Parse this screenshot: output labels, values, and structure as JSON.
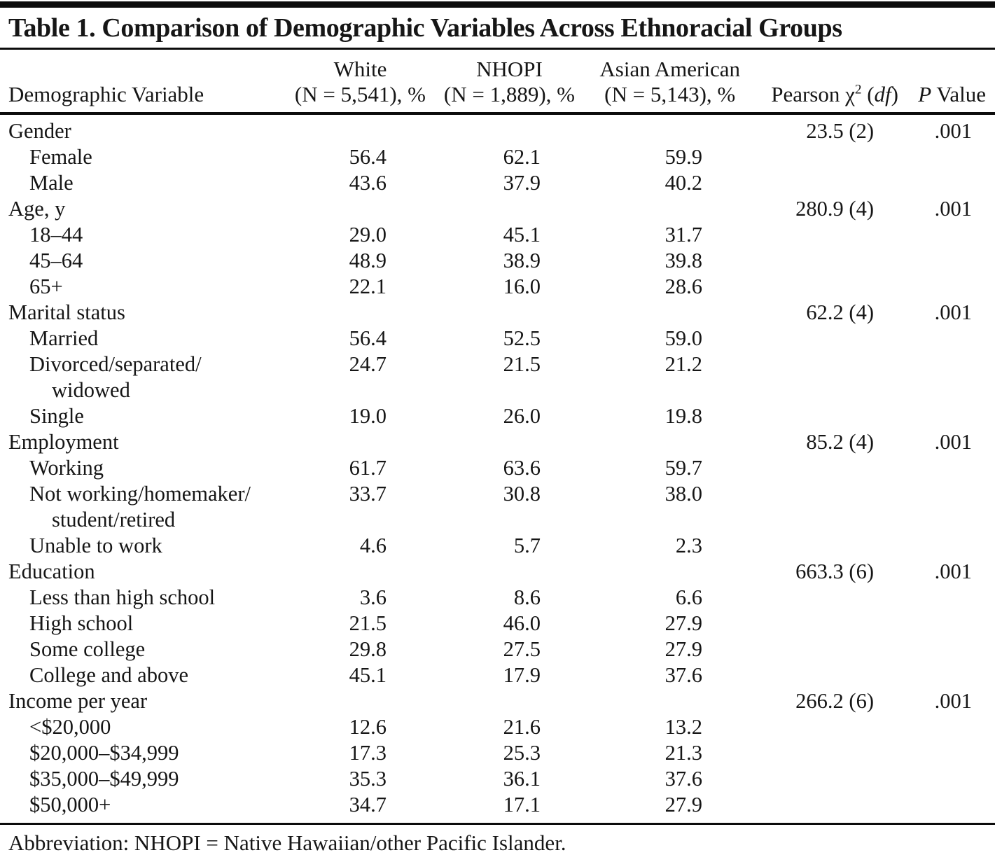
{
  "title": "Table 1. Comparison of Demographic Variables Across Ethnoracial Groups",
  "columns": {
    "variable": "Demographic Variable",
    "white": {
      "line1": "White",
      "line2": "(N = 5,541), %"
    },
    "nhopi": {
      "line1": "NHOPI",
      "line2": "(N = 1,889), %"
    },
    "asian": {
      "line1": "Asian American",
      "line2": "(N = 5,143), %"
    },
    "pearson": {
      "pre": "Pearson χ",
      "sup": "2",
      "mid": " (",
      "df": "df",
      "post": ")"
    },
    "pvalue": {
      "italic": "P",
      "rest": " Value"
    }
  },
  "rows": [
    {
      "label": "Gender",
      "type": "section",
      "chi": "23.5 (2)",
      "p": ".001"
    },
    {
      "label": "Female",
      "type": "sub",
      "white": "56.4",
      "nhopi": "62.1",
      "asian": "59.9"
    },
    {
      "label": "Male",
      "type": "sub",
      "white": "43.6",
      "nhopi": "37.9",
      "asian": "40.2"
    },
    {
      "label": "Age, y",
      "type": "section",
      "chi": "280.9 (4)",
      "p": ".001"
    },
    {
      "label": "18–44",
      "type": "sub",
      "white": "29.0",
      "nhopi": "45.1",
      "asian": "31.7"
    },
    {
      "label": "45–64",
      "type": "sub",
      "white": "48.9",
      "nhopi": "38.9",
      "asian": "39.8"
    },
    {
      "label": "65+",
      "type": "sub",
      "white": "22.1",
      "nhopi": "16.0",
      "asian": "28.6"
    },
    {
      "label": "Marital status",
      "type": "section",
      "chi": "62.2 (4)",
      "p": ".001"
    },
    {
      "label": "Married",
      "type": "sub",
      "white": "56.4",
      "nhopi": "52.5",
      "asian": "59.0"
    },
    {
      "label": "Divorced/separated/",
      "label2": "widowed",
      "type": "sub",
      "white": "24.7",
      "nhopi": "21.5",
      "asian": "21.2"
    },
    {
      "label": "Single",
      "type": "sub",
      "white": "19.0",
      "nhopi": "26.0",
      "asian": "19.8"
    },
    {
      "label": "Employment",
      "type": "section",
      "chi": "85.2 (4)",
      "p": ".001"
    },
    {
      "label": "Working",
      "type": "sub",
      "white": "61.7",
      "nhopi": "63.6",
      "asian": "59.7"
    },
    {
      "label": "Not working/homemaker/",
      "label2": "student/retired",
      "type": "sub",
      "white": "33.7",
      "nhopi": "30.8",
      "asian": "38.0"
    },
    {
      "label": "Unable to work",
      "type": "sub",
      "white": "4.6",
      "nhopi": "5.7",
      "asian": "2.3"
    },
    {
      "label": "Education",
      "type": "section",
      "chi": "663.3 (6)",
      "p": ".001"
    },
    {
      "label": "Less than high school",
      "type": "sub",
      "white": "3.6",
      "nhopi": "8.6",
      "asian": "6.6"
    },
    {
      "label": "High school",
      "type": "sub",
      "white": "21.5",
      "nhopi": "46.0",
      "asian": "27.9"
    },
    {
      "label": "Some college",
      "type": "sub",
      "white": "29.8",
      "nhopi": "27.5",
      "asian": "27.9"
    },
    {
      "label": "College and above",
      "type": "sub",
      "white": "45.1",
      "nhopi": "17.9",
      "asian": "37.6"
    },
    {
      "label": "Income per year",
      "type": "section",
      "chi": "266.2 (6)",
      "p": ".001"
    },
    {
      "label": "<$20,000",
      "type": "sub",
      "white": "12.6",
      "nhopi": "21.6",
      "asian": "13.2"
    },
    {
      "label": "$20,000–$34,999",
      "type": "sub",
      "white": "17.3",
      "nhopi": "25.3",
      "asian": "21.3"
    },
    {
      "label": "$35,000–$49,999",
      "type": "sub",
      "white": "35.3",
      "nhopi": "36.1",
      "asian": "37.6"
    },
    {
      "label": "$50,000+",
      "type": "sub",
      "white": "34.7",
      "nhopi": "17.1",
      "asian": "27.9"
    }
  ],
  "footnote": "Abbreviation: NHOPI = Native Hawaiian/other Pacific Islander."
}
